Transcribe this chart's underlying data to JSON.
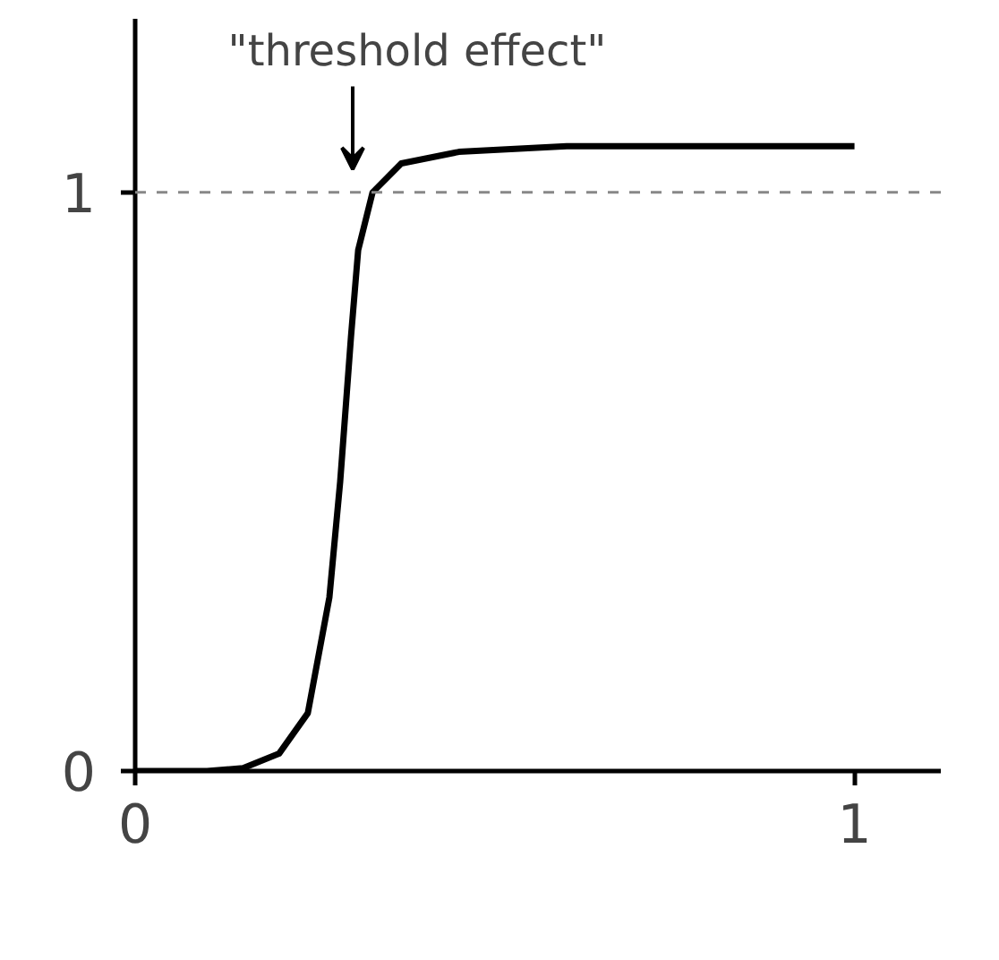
{
  "chart_data": {
    "type": "line",
    "x": [
      0,
      0.1,
      0.15,
      0.2,
      0.24,
      0.27,
      0.285,
      0.3,
      0.31,
      0.33,
      0.37,
      0.45,
      0.6,
      0.8,
      1.0
    ],
    "series": [
      {
        "color": "#000000",
        "values": [
          0,
          0,
          0.005,
          0.03,
          0.1,
          0.3,
          0.5,
          0.75,
          0.9,
          1.0,
          1.05,
          1.07,
          1.08,
          1.08,
          1.08
        ]
      }
    ],
    "xlim": [
      0,
      1.12
    ],
    "ylim": [
      0,
      1.3
    ],
    "xticks": [
      0,
      1
    ],
    "yticks": [
      0,
      1
    ],
    "ref_lines": [
      {
        "axis": "y",
        "value": 1,
        "label": null,
        "color": "#888888",
        "line_style": "dashed"
      }
    ],
    "annotations": [
      "\"threshold effect\""
    ],
    "grid": false,
    "marker": "none",
    "line_style": "solid"
  }
}
